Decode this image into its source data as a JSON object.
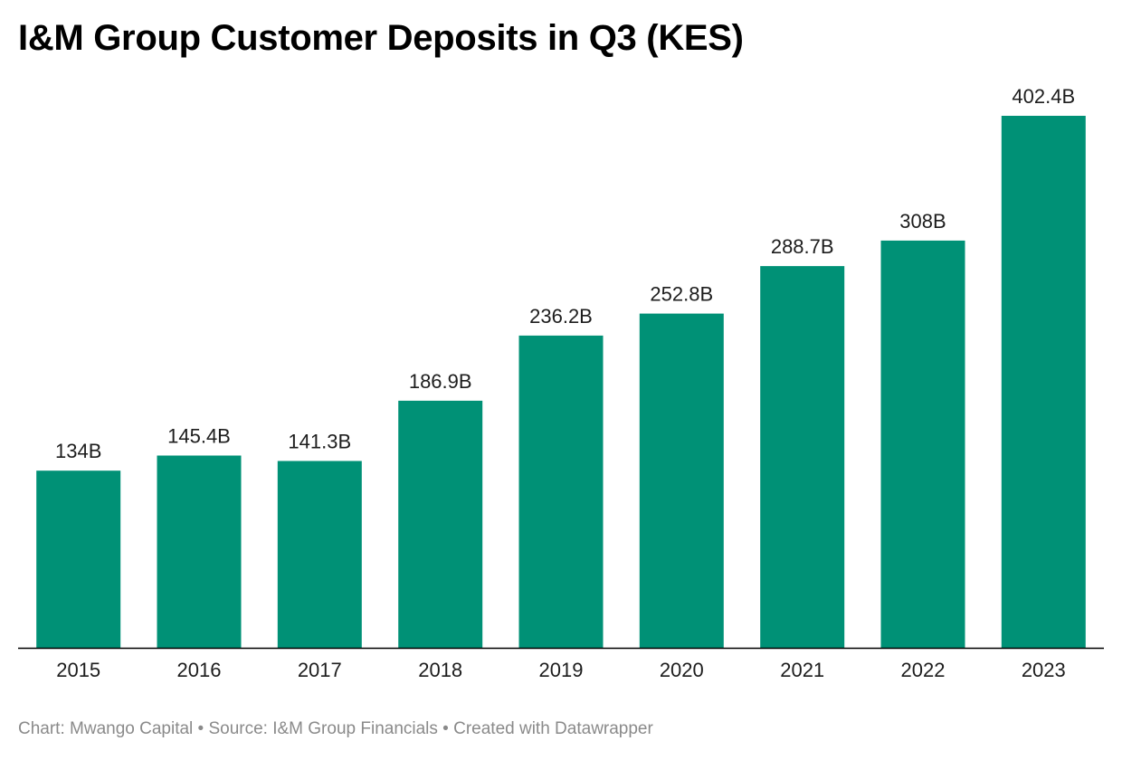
{
  "chart_data": {
    "type": "bar",
    "title": "I&M Group Customer Deposits in Q3 (KES)",
    "categories": [
      "2015",
      "2016",
      "2017",
      "2018",
      "2019",
      "2020",
      "2021",
      "2022",
      "2023"
    ],
    "values": [
      134,
      145.4,
      141.3,
      186.9,
      236.2,
      252.8,
      288.7,
      308,
      402.4
    ],
    "data_labels": [
      "134B",
      "145.4B",
      "141.3B",
      "186.9B",
      "236.2B",
      "252.8B",
      "288.7B",
      "308B",
      "402.4B"
    ],
    "unit": "B",
    "ylim": [
      0,
      402.4
    ],
    "grid": false,
    "bar_color": "#009176",
    "baseline_color": "#000000"
  },
  "footer": {
    "credit": "Chart: Mwango Capital • Source: I&M Group Financials • Created with Datawrapper"
  }
}
